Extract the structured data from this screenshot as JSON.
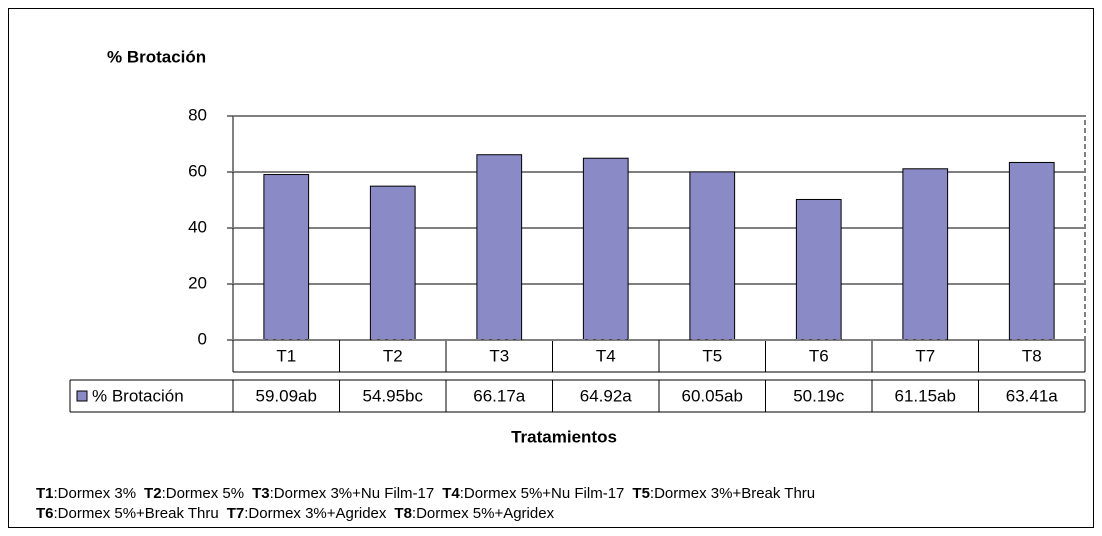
{
  "chart_data": {
    "type": "bar",
    "title": "% Brotación",
    "x_label": "Tratamientos",
    "categories": [
      "T1",
      "T2",
      "T3",
      "T4",
      "T5",
      "T6",
      "T7",
      "T8"
    ],
    "series": [
      {
        "name": "% Brotación",
        "color": "#8a8ac6",
        "values": [
          59.09,
          54.95,
          66.17,
          64.92,
          60.05,
          50.19,
          61.15,
          63.41
        ],
        "value_labels": [
          "59.09ab",
          "54.95bc",
          "66.17a",
          "64.92a",
          "60.05ab",
          "50.19c",
          "61.15ab",
          "63.41a"
        ]
      }
    ],
    "ylim": [
      0,
      80
    ],
    "yticks": [
      0,
      20,
      40,
      60,
      80
    ],
    "grid": true,
    "footnotes": [
      [
        {
          "key": "T1",
          "text": ":Dormex 3%"
        },
        {
          "key": "T2",
          "text": ":Dormex 5%"
        },
        {
          "key": "T3",
          "text": ":Dormex 3%+Nu Film-17"
        },
        {
          "key": "T4",
          "text": ":Dormex 5%+Nu Film-17"
        },
        {
          "key": "T5",
          "text": ":Dormex 3%+Break Thru"
        }
      ],
      [
        {
          "key": "T6",
          "text": ":Dormex 5%+Break Thru"
        },
        {
          "key": "T7",
          "text": ":Dormex 3%+Agridex"
        },
        {
          "key": "T8",
          "text": ":Dormex 5%+Agridex"
        }
      ]
    ]
  }
}
